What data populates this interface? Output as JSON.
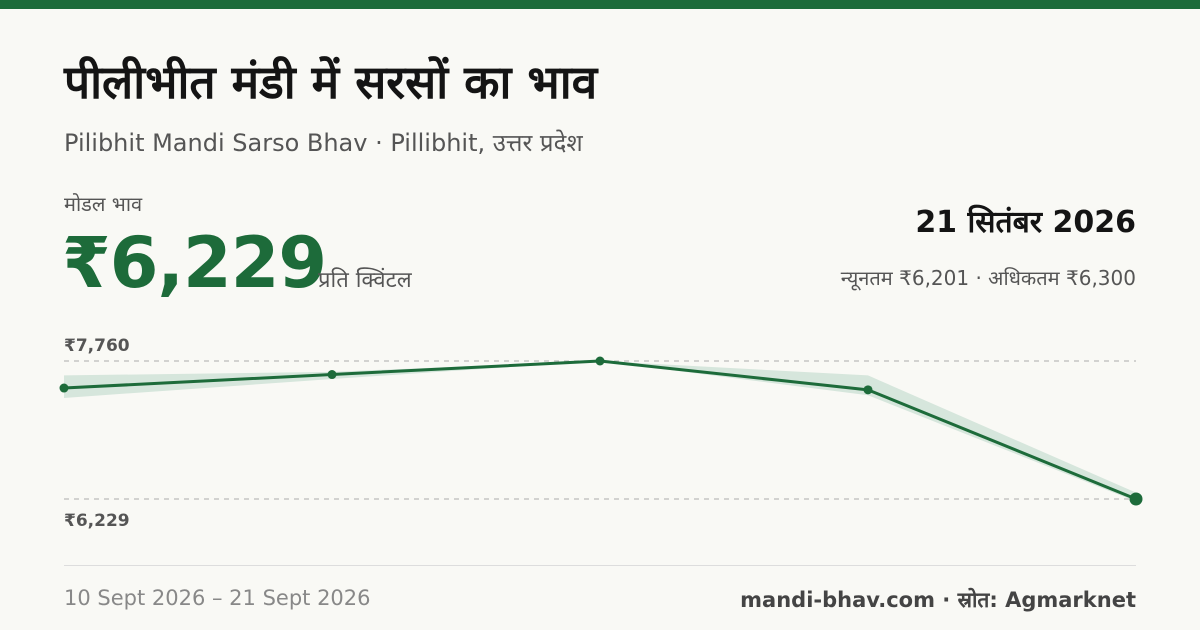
{
  "header": {
    "title": "पीलीभीत मंडी में सरसों का भाव",
    "subtitle": "Pilibhit Mandi Sarso Bhav · Pillibhit, उत्तर प्रदेश"
  },
  "summary": {
    "modal_label": "मोडल भाव",
    "modal_price": "₹6,229",
    "unit": "प्रति क्विंटल",
    "date": "21 सितंबर 2026",
    "range_text": "न्यूनतम ₹6,201 · अधिकतम ₹6,300"
  },
  "chart_data": {
    "type": "line",
    "x": [
      "10 Sept 2026",
      "",
      "",
      "",
      "21 Sept 2026"
    ],
    "series": [
      {
        "values": [
          7460,
          7610,
          7760,
          7440,
          6229
        ]
      }
    ],
    "band": {
      "min": [
        7350,
        7560,
        7760,
        7380,
        6201
      ],
      "max": [
        7600,
        7640,
        7760,
        7600,
        6300
      ]
    },
    "y_tick_labels": [
      "₹7,760",
      "₹6,229"
    ],
    "y_ticks": [
      7760,
      6229
    ],
    "ylim": [
      6229,
      7760
    ],
    "grid": "dashed reference lines at min and max",
    "colors": {
      "line": "#1d6b3a",
      "band": "#d6e6dc",
      "grid": "#bbbbbb"
    }
  },
  "footer": {
    "period": "10 Sept 2026 – 21 Sept 2026",
    "source": "mandi-bhav.com · स्रोत: Agmarknet"
  }
}
